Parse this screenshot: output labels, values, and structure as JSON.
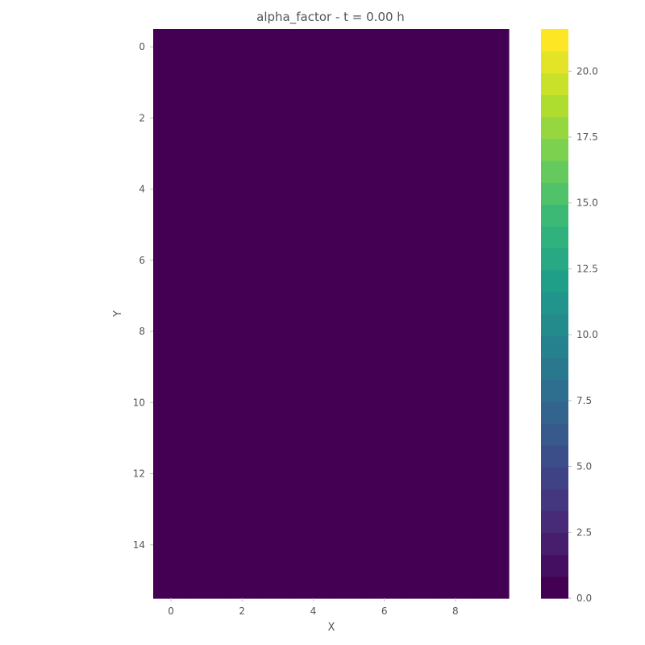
{
  "chart_data": {
    "type": "heatmap",
    "title": "alpha_factor - t = 0.00 h",
    "xlabel": "X",
    "ylabel": "Y",
    "x_ticks": [
      0,
      2,
      4,
      6,
      8
    ],
    "y_ticks": [
      0,
      2,
      4,
      6,
      8,
      10,
      12,
      14
    ],
    "xlim": [
      -0.5,
      9.5
    ],
    "ylim": [
      15.5,
      -0.5
    ],
    "grid_columns": 10,
    "grid_rows": 16,
    "values": [
      [
        0,
        0,
        0,
        0,
        0,
        0,
        0,
        0,
        0,
        0
      ],
      [
        0,
        0,
        0,
        0,
        0,
        0,
        0,
        0,
        0,
        0
      ],
      [
        0,
        0,
        0,
        0,
        0,
        0,
        0,
        0,
        0,
        0
      ],
      [
        0,
        0,
        0,
        0,
        0,
        0,
        0,
        0,
        0,
        0
      ],
      [
        0,
        0,
        0,
        0,
        0,
        0,
        0,
        0,
        0,
        0
      ],
      [
        0,
        0,
        0,
        0,
        0,
        0,
        0,
        0,
        0,
        0
      ],
      [
        0,
        0,
        0,
        0,
        0,
        0,
        0,
        0,
        0,
        0
      ],
      [
        0,
        0,
        0,
        0,
        0,
        0,
        0,
        0,
        0,
        0
      ],
      [
        0,
        0,
        0,
        0,
        0,
        0,
        0,
        0,
        0,
        0
      ],
      [
        0,
        0,
        0,
        0,
        0,
        0,
        0,
        0,
        0,
        0
      ],
      [
        0,
        0,
        0,
        0,
        0,
        0,
        0,
        0,
        0,
        0
      ],
      [
        0,
        0,
        0,
        0,
        0,
        0,
        0,
        0,
        0,
        0
      ],
      [
        0,
        0,
        0,
        0,
        0,
        0,
        0,
        0,
        0,
        0
      ],
      [
        0,
        0,
        0,
        0,
        0,
        0,
        0,
        0,
        0,
        0
      ],
      [
        0,
        0,
        0,
        0,
        0,
        0,
        0,
        0,
        0,
        0
      ],
      [
        0,
        0,
        0,
        0,
        0,
        0,
        0,
        0,
        0,
        0
      ]
    ],
    "colorbar": {
      "colormap": "viridis",
      "range": [
        0,
        21.6
      ],
      "levels": 26,
      "ticks": [
        "0.0",
        "2.5",
        "5.0",
        "7.5",
        "10.0",
        "12.5",
        "15.0",
        "17.5",
        "20.0"
      ]
    },
    "colors": {
      "text": "#555555",
      "tick": "#bbbbbb",
      "viridis": [
        "#440154",
        "#482878",
        "#3e4989",
        "#31688e",
        "#26828e",
        "#1f9e89",
        "#35b779",
        "#6ece58",
        "#b5de2b",
        "#fde725"
      ]
    }
  }
}
